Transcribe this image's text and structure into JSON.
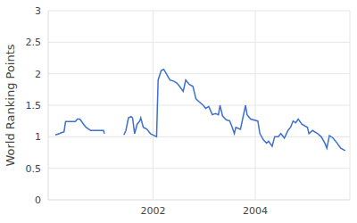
{
  "chart_data": {
    "type": "line",
    "y_label": "World Ranking Points",
    "color": "#3e6fd3",
    "grid": true,
    "xlim": [
      1999.95,
      2005.85
    ],
    "xticks": [
      2002,
      2004
    ],
    "ylim": [
      0,
      3
    ],
    "yticks": [
      0,
      0.5,
      1,
      1.5,
      2,
      2.5,
      3
    ],
    "x": [
      2000.09,
      2000.17,
      2000.26,
      2000.29,
      2000.48,
      2000.52,
      2000.57,
      2000.64,
      2000.69,
      2000.78,
      2001.03,
      2001.05,
      2001.2,
      2001.43,
      2001.47,
      2001.52,
      2001.57,
      2001.6,
      2001.64,
      2001.69,
      2001.74,
      2001.76,
      2001.81,
      2001.88,
      2001.95,
      2002.02,
      2002.07,
      2002.1,
      2002.16,
      2002.21,
      2002.26,
      2002.33,
      2002.41,
      2002.47,
      2002.52,
      2002.59,
      2002.64,
      2002.71,
      2002.78,
      2002.84,
      2002.91,
      2002.98,
      2003.03,
      2003.09,
      2003.16,
      2003.22,
      2003.28,
      2003.31,
      2003.36,
      2003.43,
      2003.5,
      2003.55,
      2003.59,
      2003.62,
      2003.71,
      2003.81,
      2003.84,
      2003.91,
      2004.05,
      2004.09,
      2004.16,
      2004.22,
      2004.26,
      2004.33,
      2004.38,
      2004.45,
      2004.5,
      2004.57,
      2004.64,
      2004.69,
      2004.74,
      2004.79,
      2004.84,
      2004.91,
      2005.02,
      2005.05,
      2005.12,
      2005.22,
      2005.29,
      2005.36,
      2005.4,
      2005.45,
      2005.52,
      2005.6,
      2005.67,
      2005.76
    ],
    "values": [
      1.03,
      1.05,
      1.08,
      1.24,
      1.24,
      1.28,
      1.28,
      1.2,
      1.15,
      1.1,
      1.1,
      1.05,
      null,
      1.03,
      1.1,
      1.3,
      1.32,
      1.3,
      1.05,
      1.2,
      1.25,
      1.3,
      1.15,
      1.12,
      1.05,
      1.02,
      1.0,
      1.9,
      2.05,
      2.07,
      2.0,
      1.9,
      1.88,
      1.85,
      1.8,
      1.72,
      1.9,
      1.83,
      1.8,
      1.6,
      1.55,
      1.5,
      1.45,
      1.48,
      1.35,
      1.37,
      1.35,
      1.5,
      1.33,
      1.27,
      1.25,
      1.15,
      1.05,
      1.15,
      1.12,
      1.5,
      1.35,
      1.28,
      1.25,
      1.05,
      0.95,
      0.9,
      0.93,
      0.85,
      1.0,
      1.0,
      1.05,
      0.98,
      1.1,
      1.15,
      1.25,
      1.22,
      1.28,
      1.2,
      1.15,
      1.05,
      1.1,
      1.05,
      1.0,
      0.9,
      0.82,
      1.02,
      0.98,
      0.9,
      0.82,
      0.78
    ]
  }
}
